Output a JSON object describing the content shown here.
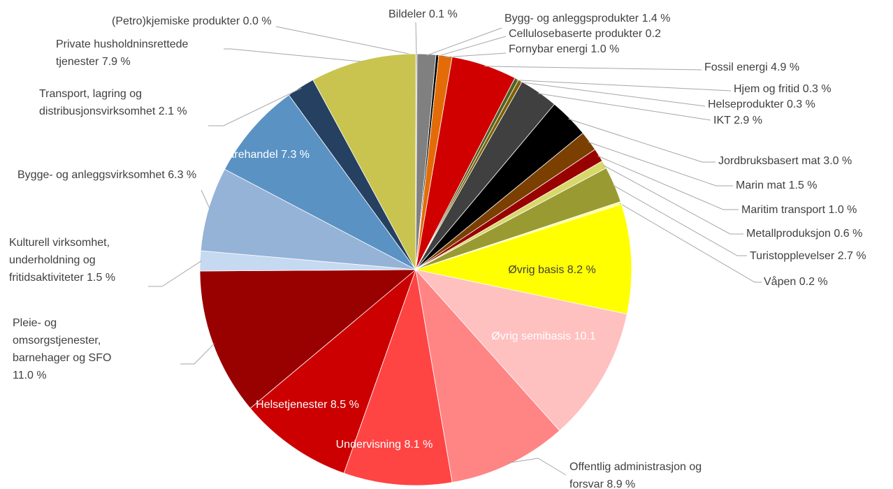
{
  "chart_data": {
    "type": "pie",
    "categories": [
      "(Petro)kjemiske produkter",
      "Bildeler",
      "Bygg- og anleggsprodukter",
      "Cellulosebaserte produkter",
      "Fornybar energi",
      "Fossil energi",
      "Hjem og fritid",
      "Helseprodukter",
      "IKT",
      "Jordbruksbasert mat",
      "Marin mat",
      "Maritim transport",
      "Metallproduksjon",
      "Turistopplevelser",
      "Våpen",
      "Øvrig basis",
      "Øvrig semibasis",
      "Offentlig administrasjon og forsvar",
      "Undervisning",
      "Helsetjenester",
      "Pleie- og omsorgstjenester, barnehager og SFO",
      "Kulturell virksomhet, underholdning og fritidsaktiviteter",
      "Bygge- og anleggsvirksomhet",
      "Varehandel",
      "Transport, lagring og distribusjonsvirksomhet",
      "Private husholdninsrettede tjenester"
    ],
    "values": [
      0,
      0.1,
      1.4,
      0.2,
      1.0,
      4.9,
      0.3,
      0.3,
      2.9,
      3.0,
      1.5,
      1.0,
      0.6,
      2.7,
      0.2,
      8.2,
      10.1,
      8.9,
      8.1,
      8.5,
      11.0,
      1.5,
      6.3,
      7.3,
      2.1,
      7.9
    ],
    "value_labels": [
      "0.0 %",
      "0.1 %",
      "1.4 %",
      "0.2",
      "1.0 %",
      "4.9 %",
      "0.3 %",
      "0.3 %",
      "2.9 %",
      "3.0 %",
      "1.5 %",
      "1.0 %",
      "0.6 %",
      "2.7 %",
      "0.2 %",
      "8.2 %",
      "10.1",
      "8.9 %",
      "8.1 %",
      "8.5 %",
      "11.0 %",
      "1.5 %",
      "6.3 %",
      "7.3 %",
      "2.1 %",
      "7.9 %"
    ],
    "colors": [
      "#bfbfbf",
      "#a6a6a6",
      "#808080",
      "#000000",
      "#e36c09",
      "#d00000",
      "#4f6228",
      "#7f6000",
      "#404040",
      "#000000",
      "#7b3f00",
      "#990000",
      "#d8d86a",
      "#9a9a33",
      "#ffff99",
      "#ffff00",
      "#ffc0c0",
      "#ff8585",
      "#ff4444",
      "#cc0000",
      "#990000",
      "#c5d9f1",
      "#95b3d7",
      "#5b92c4",
      "#254061",
      "#c8c44f"
    ]
  }
}
